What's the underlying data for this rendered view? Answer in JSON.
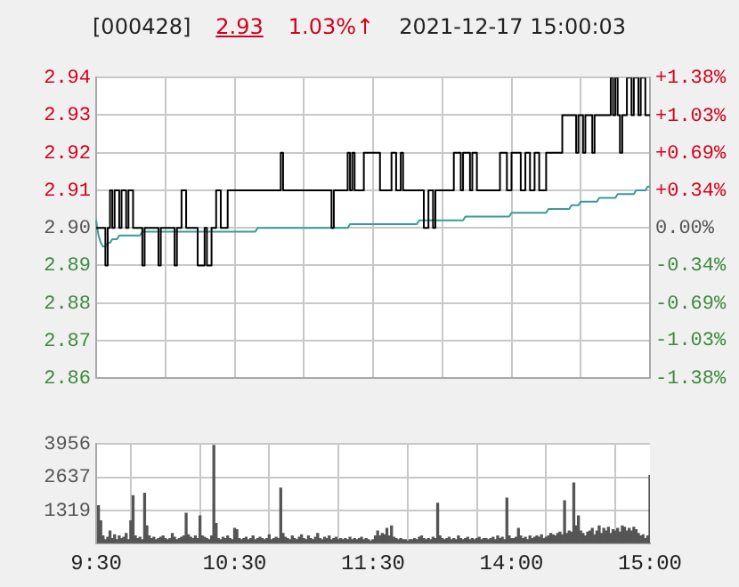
{
  "chart_data": [
    {
      "type": "line",
      "title": "[000428]",
      "annotations": [
        "2.93",
        "1.03%↑",
        "2021-12-17 15:00:03"
      ],
      "categories": [
        null,
        null,
        null,
        null,
        null,
        null,
        null,
        null,
        null,
        null,
        null,
        null,
        null,
        null,
        null,
        null,
        null,
        null,
        null,
        null,
        null,
        null,
        null,
        null,
        null,
        null,
        null,
        null,
        null,
        null,
        null,
        null,
        null,
        null,
        null,
        null,
        null,
        null,
        null,
        null,
        null,
        null,
        null,
        null,
        null,
        null,
        null,
        null,
        null,
        null,
        null,
        null,
        null,
        null,
        null,
        null,
        null,
        null,
        null,
        null,
        null,
        null,
        null,
        null,
        null,
        null,
        null,
        null,
        null,
        null,
        null,
        null,
        null,
        null,
        null,
        null,
        null,
        null,
        null,
        null,
        null,
        null,
        null,
        null,
        null,
        null,
        null,
        null,
        null,
        null,
        null,
        null,
        null,
        null,
        null,
        null,
        null,
        null,
        null,
        null,
        null,
        null,
        null,
        null,
        null,
        null,
        null,
        null,
        null,
        null,
        null,
        null,
        null,
        null,
        null,
        null,
        null,
        null,
        null,
        null,
        null,
        null,
        null,
        null,
        null,
        null,
        null,
        null,
        null,
        null,
        null,
        null,
        null,
        null,
        null,
        null,
        null,
        null,
        null,
        null,
        null,
        null,
        null,
        null,
        null,
        null,
        null,
        null,
        null,
        null,
        null,
        null,
        null,
        null,
        null,
        null,
        null,
        null,
        null,
        null,
        null,
        null,
        null,
        null,
        null,
        null,
        null,
        null,
        null,
        null,
        null,
        null,
        null,
        null,
        null,
        null,
        null,
        null,
        null,
        null,
        null,
        null,
        null,
        null,
        null,
        null,
        null,
        null,
        null,
        null,
        null,
        null,
        null,
        null,
        null,
        null,
        null,
        null,
        null,
        null,
        null,
        null,
        null,
        null,
        null,
        null,
        null,
        null,
        null,
        null,
        null,
        null,
        null,
        null,
        null,
        null,
        null,
        null,
        null,
        null,
        null,
        null,
        null,
        null,
        null,
        null,
        null,
        null,
        null,
        null,
        null,
        null,
        null,
        null,
        null,
        null,
        null,
        null,
        null,
        null,
        null
      ],
      "ylim": [
        2.86,
        2.94
      ],
      "yticks": [
        2.86,
        2.87,
        2.88,
        2.89,
        {
          "value": 2.9,
          "label": "2.90"
        },
        2.91,
        2.92,
        2.93,
        2.94
      ],
      "y2lim": [
        -1.38,
        1.38
      ],
      "y2ticks": [
        {
          "value": -1.38,
          "label": "-1.38%"
        },
        {
          "value": -1.03,
          "label": "-1.03%"
        },
        {
          "value": -0.69,
          "label": "-0.69%"
        },
        {
          "value": -0.34,
          "label": "-0.34%"
        },
        {
          "value": 0,
          "label": "0.00%"
        },
        {
          "value": 0.34,
          "label": "+0.34%"
        },
        {
          "value": 0.69,
          "label": "+0.69%"
        },
        {
          "value": 1.03,
          "label": "+1.03%"
        },
        {
          "value": 1.38,
          "label": "+1.38%"
        }
      ],
      "grid": true,
      "series": [
        {
          "type": "step",
          "color": "#000000",
          "values": [
            2.9,
            2.9,
            2.9,
            2.9,
            2.89,
            2.9,
            2.91,
            2.9,
            2.91,
            2.91,
            2.9,
            2.91,
            2.91,
            2.9,
            2.91,
            2.91,
            2.9,
            2.9,
            2.9,
            2.9,
            2.89,
            2.9,
            2.9,
            2.9,
            2.9,
            2.9,
            2.9,
            2.89,
            2.9,
            2.9,
            2.9,
            2.9,
            2.9,
            2.9,
            2.89,
            2.9,
            2.9,
            2.91,
            2.91,
            2.9,
            2.9,
            2.9,
            2.9,
            2.9,
            2.89,
            2.89,
            2.89,
            2.9,
            2.89,
            2.89,
            2.9,
            2.9,
            2.91,
            2.91,
            2.9,
            2.9,
            2.9,
            2.91,
            2.91,
            2.91,
            2.91,
            2.91,
            2.91,
            2.91,
            2.91,
            2.91,
            2.91,
            2.91,
            2.91,
            2.91,
            2.91,
            2.91,
            2.91,
            2.91,
            2.91,
            2.91,
            2.91,
            2.91,
            2.91,
            2.91,
            2.92,
            2.91,
            2.91,
            2.91,
            2.91,
            2.91,
            2.91,
            2.91,
            2.91,
            2.91,
            2.91,
            2.91,
            2.91,
            2.91,
            2.91,
            2.91,
            2.91,
            2.91,
            2.91,
            2.91,
            2.91,
            2.91,
            2.9,
            2.91,
            2.91,
            2.91,
            2.91,
            2.91,
            2.91,
            2.92,
            2.91,
            2.92,
            2.91,
            2.91,
            2.91,
            2.91,
            2.92,
            2.92,
            2.92,
            2.92,
            2.92,
            2.92,
            2.92,
            2.91,
            2.91,
            2.91,
            2.91,
            2.91,
            2.92,
            2.92,
            2.91,
            2.91,
            2.92,
            2.91,
            2.91,
            2.91,
            2.91,
            2.91,
            2.91,
            2.91,
            2.91,
            2.91,
            2.9,
            2.9,
            2.91,
            2.91,
            2.9,
            2.91,
            2.91,
            2.91,
            2.91,
            2.91,
            2.91,
            2.91,
            2.91,
            2.92,
            2.92,
            2.92,
            2.91,
            2.92,
            2.92,
            2.92,
            2.91,
            2.92,
            2.92,
            2.91,
            2.91,
            2.91,
            2.91,
            2.91,
            2.91,
            2.91,
            2.91,
            2.91,
            2.91,
            2.92,
            2.92,
            2.92,
            2.91,
            2.91,
            2.92,
            2.92,
            2.92,
            2.92,
            2.91,
            2.91,
            2.92,
            2.92,
            2.91,
            2.91,
            2.92,
            2.92,
            2.91,
            2.91,
            2.91,
            2.92,
            2.92,
            2.92,
            2.92,
            2.92,
            2.92,
            2.92,
            2.93,
            2.93,
            2.93,
            2.93,
            2.93,
            2.93,
            2.92,
            2.93,
            2.93,
            2.92,
            2.93,
            2.93,
            2.93,
            2.92,
            2.93,
            2.93,
            2.93,
            2.93,
            2.93,
            2.93,
            2.93,
            2.94,
            2.93,
            2.94,
            2.93,
            2.92,
            2.93,
            2.93,
            2.94,
            2.94,
            2.93,
            2.94,
            2.94,
            2.93,
            2.94,
            2.94,
            2.93,
            2.93,
            2.93
          ]
        },
        {
          "color": "#3a9a9a",
          "values": [
            2.902,
            2.898,
            2.896,
            2.895,
            2.895,
            2.896,
            2.896,
            2.897,
            2.897,
            2.897,
            2.898,
            2.898,
            2.898,
            2.898,
            2.898,
            2.898,
            2.898,
            2.898,
            2.898,
            2.898,
            2.899,
            2.899,
            2.899,
            2.899,
            2.899,
            2.899,
            2.899,
            2.899,
            2.899,
            2.899,
            2.899,
            2.899,
            2.899,
            2.899,
            2.899,
            2.899,
            2.899,
            2.899,
            2.899,
            2.899,
            2.899,
            2.899,
            2.899,
            2.899,
            2.899,
            2.899,
            2.899,
            2.899,
            2.899,
            2.899,
            2.899,
            2.899,
            2.899,
            2.899,
            2.899,
            2.899,
            2.899,
            2.899,
            2.899,
            2.899,
            2.899,
            2.899,
            2.899,
            2.899,
            2.899,
            2.899,
            2.899,
            2.899,
            2.899,
            2.899,
            2.9,
            2.9,
            2.9,
            2.9,
            2.9,
            2.9,
            2.9,
            2.9,
            2.9,
            2.9,
            2.9,
            2.9,
            2.9,
            2.9,
            2.9,
            2.9,
            2.9,
            2.9,
            2.9,
            2.9,
            2.9,
            2.9,
            2.9,
            2.9,
            2.9,
            2.9,
            2.9,
            2.9,
            2.9,
            2.9,
            2.9,
            2.9,
            2.9,
            2.9,
            2.9,
            2.9,
            2.9,
            2.9,
            2.9,
            2.9,
            2.901,
            2.901,
            2.901,
            2.901,
            2.901,
            2.901,
            2.901,
            2.901,
            2.901,
            2.901,
            2.901,
            2.901,
            2.901,
            2.901,
            2.901,
            2.901,
            2.901,
            2.901,
            2.901,
            2.901,
            2.901,
            2.901,
            2.901,
            2.901,
            2.901,
            2.901,
            2.901,
            2.901,
            2.901,
            2.901,
            2.902,
            2.902,
            2.902,
            2.902,
            2.902,
            2.902,
            2.902,
            2.902,
            2.902,
            2.902,
            2.902,
            2.902,
            2.902,
            2.902,
            2.902,
            2.902,
            2.902,
            2.902,
            2.902,
            2.902,
            2.903,
            2.903,
            2.903,
            2.903,
            2.903,
            2.903,
            2.903,
            2.903,
            2.903,
            2.903,
            2.903,
            2.903,
            2.903,
            2.903,
            2.903,
            2.903,
            2.903,
            2.903,
            2.903,
            2.903,
            2.904,
            2.904,
            2.904,
            2.904,
            2.904,
            2.904,
            2.904,
            2.904,
            2.904,
            2.904,
            2.904,
            2.904,
            2.904,
            2.904,
            2.904,
            2.904,
            2.905,
            2.905,
            2.905,
            2.905,
            2.905,
            2.905,
            2.905,
            2.905,
            2.905,
            2.905,
            2.906,
            2.906,
            2.906,
            2.906,
            2.907,
            2.907,
            2.907,
            2.907,
            2.907,
            2.907,
            2.907,
            2.907,
            2.908,
            2.908,
            2.908,
            2.908,
            2.908,
            2.908,
            2.908,
            2.908,
            2.909,
            2.909,
            2.909,
            2.909,
            2.909,
            2.909,
            2.909,
            2.909,
            2.91,
            2.91,
            2.91,
            2.91,
            2.91,
            2.911,
            2.911
          ]
        }
      ]
    },
    {
      "type": "bar",
      "color": "#555555",
      "categories": [
        "9:30",
        null,
        null,
        null,
        null,
        null,
        null,
        null,
        null,
        null,
        null,
        null,
        null,
        null,
        null,
        null,
        null,
        null,
        null,
        null,
        null,
        null,
        null,
        null,
        null,
        null,
        null,
        null,
        null,
        null,
        null,
        null,
        null,
        null,
        null,
        null,
        null,
        null,
        null,
        null,
        null,
        null,
        null,
        null,
        null,
        null,
        null,
        null,
        null,
        null,
        null,
        null,
        null,
        null,
        null,
        null,
        null,
        null,
        null,
        null,
        "10:30",
        null,
        null,
        null,
        null,
        null,
        null,
        null,
        null,
        null,
        null,
        null,
        null,
        null,
        null,
        null,
        null,
        null,
        null,
        null,
        null,
        null,
        null,
        null,
        null,
        null,
        null,
        null,
        null,
        null,
        null,
        null,
        null,
        null,
        null,
        null,
        null,
        null,
        null,
        null,
        null,
        null,
        null,
        null,
        null,
        null,
        null,
        null,
        null,
        null,
        null,
        null,
        null,
        null,
        null,
        null,
        null,
        null,
        null,
        null,
        "11:30",
        null,
        null,
        null,
        null,
        null,
        null,
        null,
        null,
        null,
        null,
        null,
        null,
        null,
        null,
        null,
        null,
        null,
        null,
        null,
        null,
        null,
        null,
        null,
        null,
        null,
        null,
        null,
        null,
        null,
        null,
        null,
        null,
        null,
        null,
        null,
        null,
        null,
        null,
        null,
        null,
        null,
        null,
        null,
        null,
        null,
        null,
        null,
        null,
        null,
        null,
        null,
        null,
        null,
        null,
        null,
        null,
        null,
        null,
        null,
        "14:00",
        null,
        null,
        null,
        null,
        null,
        null,
        null,
        null,
        null,
        null,
        null,
        null,
        null,
        null,
        null,
        null,
        null,
        null,
        null,
        null,
        null,
        null,
        null,
        null,
        null,
        null,
        null,
        null,
        null,
        null,
        null,
        null,
        null,
        null,
        null,
        null,
        null,
        null,
        null,
        null,
        null,
        null,
        null,
        null,
        null,
        null,
        null,
        null,
        null,
        null,
        null,
        null,
        null,
        null,
        null,
        null,
        null,
        null,
        null,
        "15:00"
      ],
      "ylim": [
        0,
        3956
      ],
      "yticks": [
        {
          "value": 0,
          "label": null
        },
        1319,
        2637,
        3956
      ],
      "grid": true,
      "values": [
        null,
        1500,
        900,
        300,
        150,
        250,
        500,
        200,
        350,
        150,
        300,
        200,
        250,
        400,
        150,
        900,
        1900,
        300,
        200,
        250,
        150,
        2000,
        700,
        300,
        200,
        250,
        150,
        200,
        250,
        300,
        200,
        150,
        200,
        400,
        250,
        150,
        200,
        250,
        300,
        1200,
        350,
        250,
        200,
        300,
        200,
        1100,
        300,
        250,
        200,
        150,
        300,
        3900,
        800,
        200,
        150,
        250,
        200,
        300,
        200,
        150,
        600,
        550,
        200,
        150,
        200,
        250,
        150,
        200,
        300,
        150,
        200,
        250,
        200,
        150,
        200,
        350,
        150,
        200,
        250,
        200,
        2200,
        400,
        250,
        200,
        150,
        300,
        200,
        150,
        250,
        350,
        200,
        150,
        300,
        200,
        150,
        250,
        400,
        200,
        150,
        250,
        200,
        300,
        150,
        200,
        250,
        150,
        200,
        150,
        200,
        150,
        250,
        150,
        200,
        150,
        200,
        250,
        150,
        200,
        150,
        100,
        150,
        300,
        500,
        300,
        400,
        350,
        600,
        300,
        700,
        250,
        200,
        150,
        200,
        150,
        150,
        100,
        150,
        150,
        200,
        150,
        250,
        300,
        200,
        150,
        200,
        150,
        250,
        200,
        1600,
        300,
        200,
        150,
        200,
        250,
        150,
        200,
        150,
        300,
        200,
        150,
        200,
        250,
        150,
        200,
        150,
        200,
        250,
        150,
        200,
        200,
        150,
        200,
        250,
        150,
        300,
        200,
        250,
        150,
        1800,
        300,
        200,
        200,
        250,
        600,
        300,
        200,
        250,
        150,
        300,
        200,
        250,
        300,
        250,
        350,
        200,
        250,
        300,
        400,
        350,
        300,
        400,
        450,
        350,
        1700,
        400,
        500,
        450,
        2400,
        700,
        1100,
        500,
        400,
        300,
        450,
        500,
        600,
        350,
        500,
        700,
        400,
        600,
        500,
        650,
        400,
        550,
        500,
        600,
        450,
        700,
        650,
        500,
        600,
        500,
        650,
        550,
        400,
        300,
        350,
        200,
        300,
        2700
      ]
    }
  ]
}
